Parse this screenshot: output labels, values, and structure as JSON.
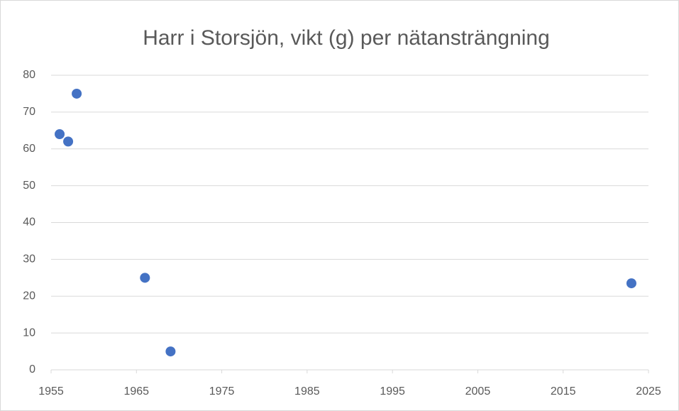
{
  "chart_data": {
    "type": "scatter",
    "title": "Harr i Storsjön, vikt (g) per nätansträngning",
    "x": [
      1956,
      1957,
      1958,
      1966,
      1969,
      2023
    ],
    "values": [
      64,
      62,
      75,
      25,
      5,
      23.5
    ],
    "color": "#4472c4",
    "xlim": [
      1955,
      2025
    ],
    "xticks": [
      1955,
      1965,
      1975,
      1985,
      1995,
      2005,
      2015,
      2025
    ],
    "ylim": [
      0,
      80
    ],
    "yticks": [
      0,
      10,
      20,
      30,
      40,
      50,
      60,
      70,
      80
    ],
    "grid": true
  }
}
